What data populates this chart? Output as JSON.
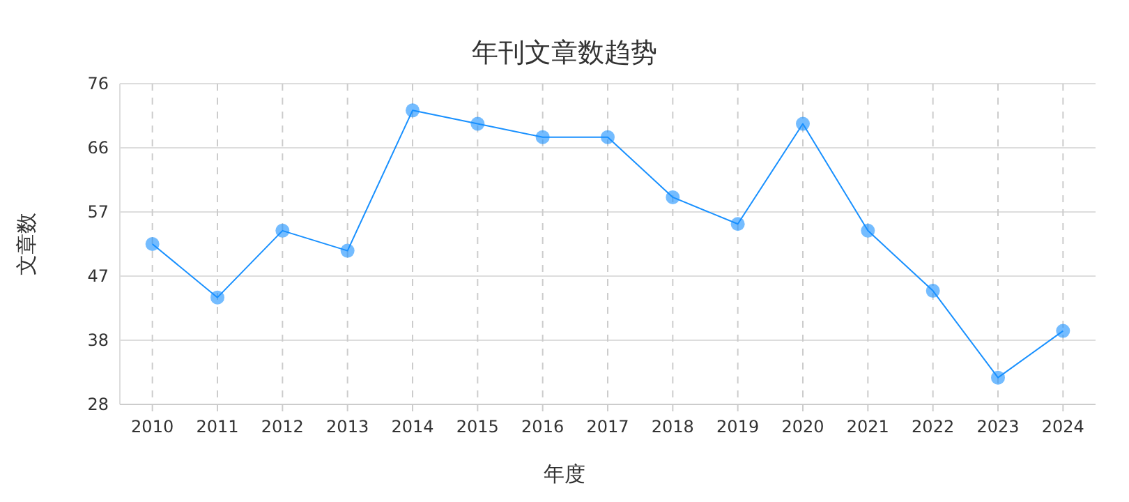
{
  "chart_data": {
    "type": "line",
    "title": "年刊文章数趋势",
    "xlabel": "年度",
    "ylabel": "文章数",
    "categories": [
      "2010",
      "2011",
      "2012",
      "2013",
      "2014",
      "2015",
      "2016",
      "2017",
      "2018",
      "2019",
      "2020",
      "2021",
      "2022",
      "2023",
      "2024"
    ],
    "series": [
      {
        "color": "#1890ff",
        "values": [
          52,
          44,
          54,
          51,
          72,
          70,
          68,
          68,
          59,
          55,
          70,
          54,
          45,
          32,
          39
        ]
      }
    ],
    "ylim": [
      28,
      76
    ],
    "yticks": [
      28,
      {
        "value": 37.6,
        "label": "38"
      },
      {
        "value": 47.2,
        "label": "47"
      },
      {
        "value": 56.8,
        "label": "57"
      },
      {
        "value": 66.4,
        "label": "66"
      },
      76
    ],
    "grid": true,
    "marker": "circle"
  }
}
